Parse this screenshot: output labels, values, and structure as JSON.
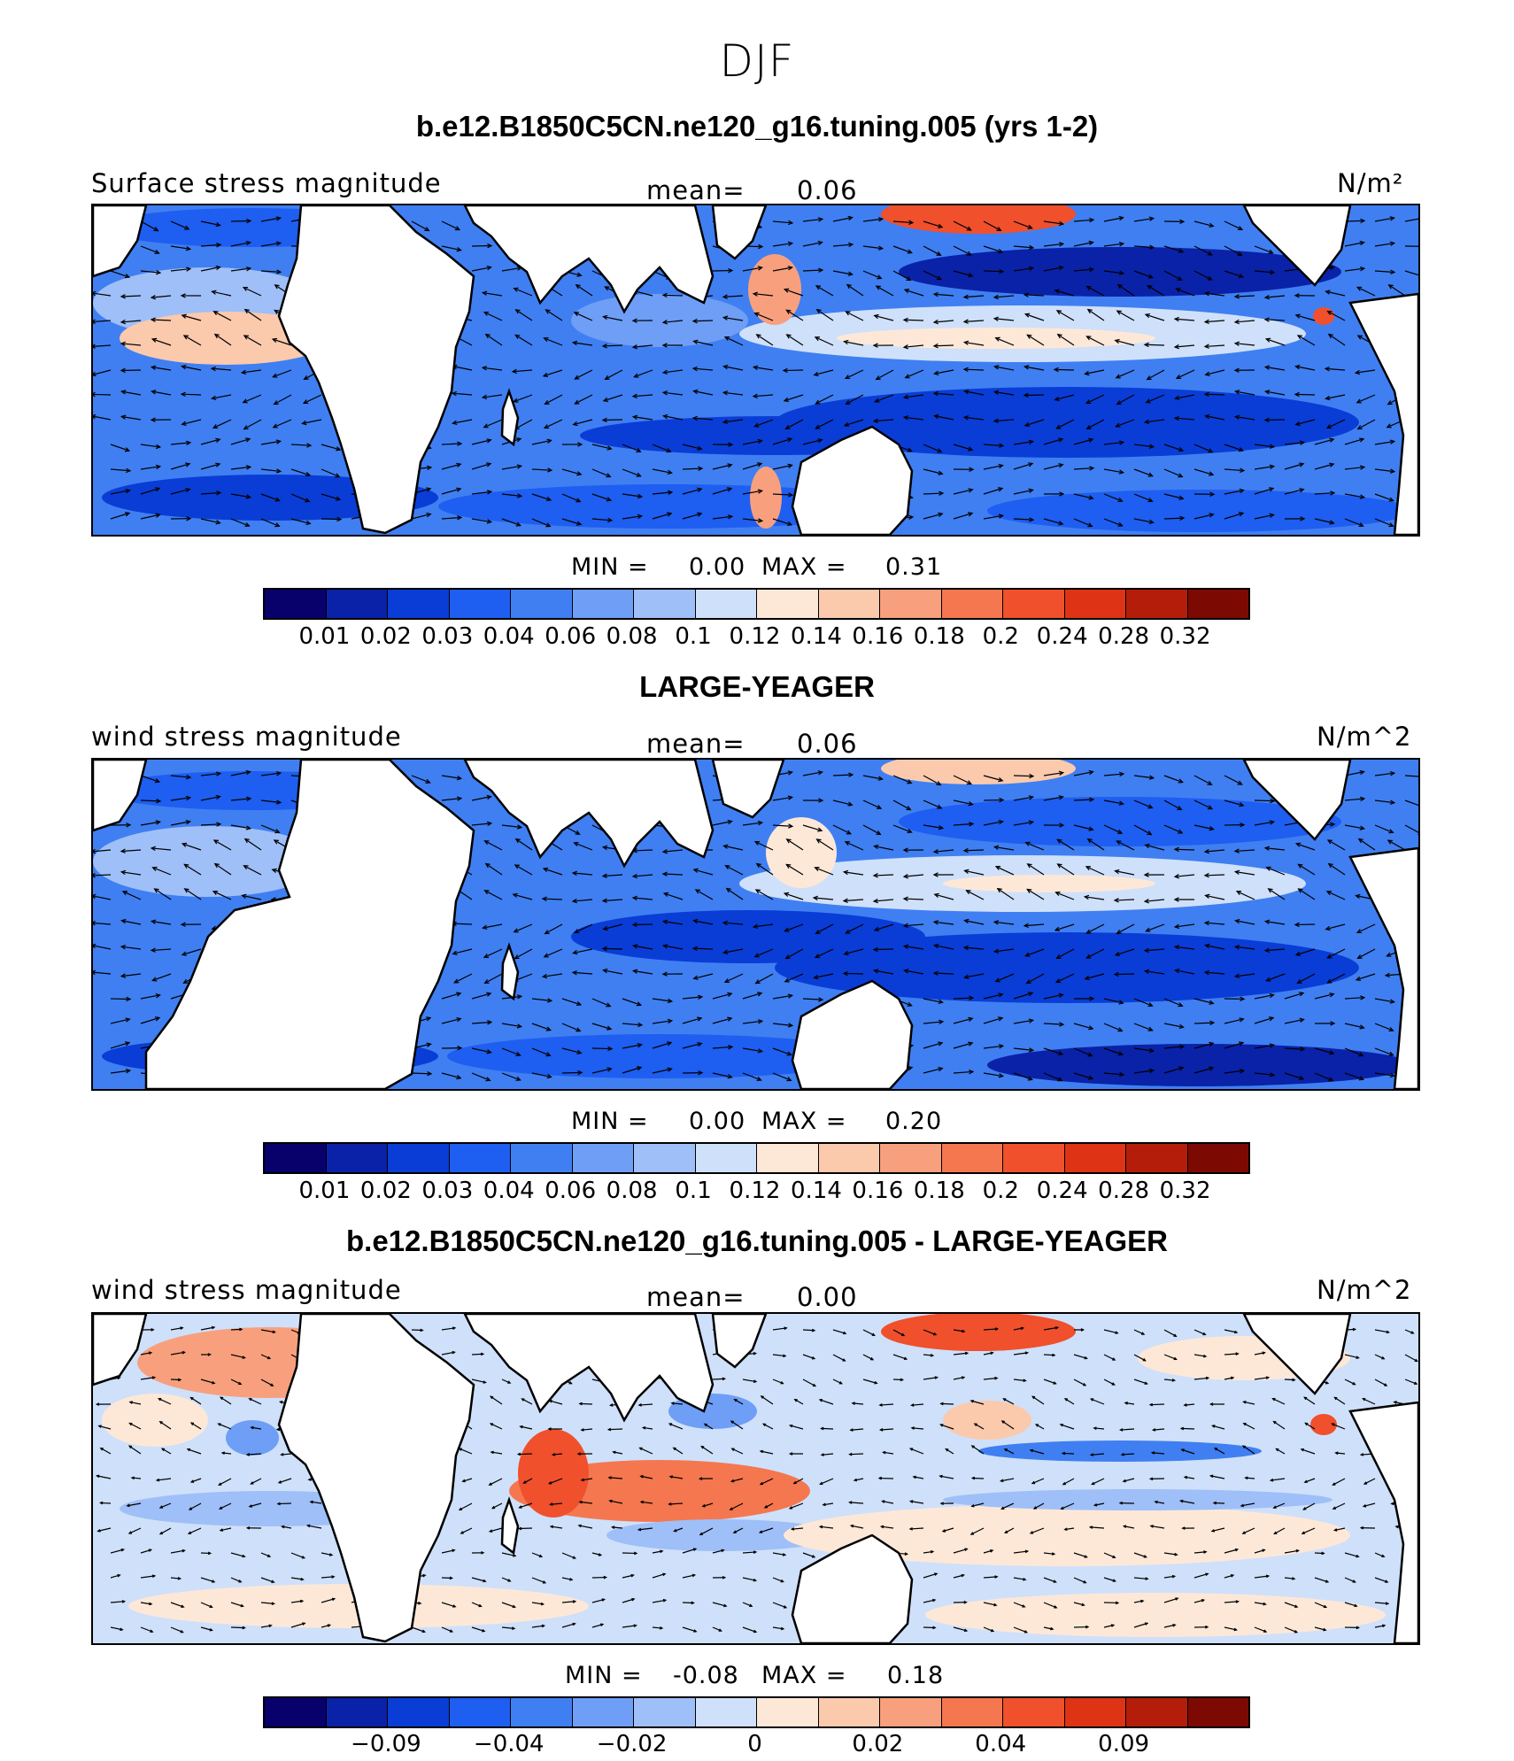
{
  "title": "DJF",
  "palette": [
    "#08006b",
    "#0a22a8",
    "#0a3dd6",
    "#1e5ef0",
    "#3f7ff2",
    "#6e9ef6",
    "#9fbff8",
    "#cfe0fa",
    "#fde8d8",
    "#fbc9ac",
    "#f8a07e",
    "#f5774f",
    "#f0502c",
    "#de3314",
    "#b51d0b",
    "#7d0a02"
  ],
  "colorbar_ticks_abs": [
    "0.01",
    "0.02",
    "0.03",
    "0.04",
    "0.06",
    "0.08",
    "0.1",
    "0.12",
    "0.14",
    "0.16",
    "0.18",
    "0.2",
    "0.24",
    "0.28",
    "0.32"
  ],
  "colorbar_ticks_diff": [
    "-0.09",
    "-0.04",
    "-0.02",
    "0",
    "0.02",
    "0.04",
    "0.09"
  ],
  "panels": [
    {
      "title": "b.e12.B1850C5CN.ne120_g16.tuning.005 (yrs 1-2)",
      "left_label": "Surface stress magnitude",
      "mean_label": "mean=",
      "mean_value": "0.06",
      "units": "N/m²",
      "min_label": "MIN =",
      "min_value": "0.00",
      "max_label": "MAX =",
      "max_value": "0.31"
    },
    {
      "title": "LARGE-YEAGER",
      "left_label": "wind stress magnitude",
      "mean_label": "mean=",
      "mean_value": "0.06",
      "units": "N/m^2",
      "min_label": "MIN =",
      "min_value": "0.00",
      "max_label": "MAX =",
      "max_value": "0.20"
    },
    {
      "title": "b.e12.B1850C5CN.ne120_g16.tuning.005 - LARGE-YEAGER",
      "left_label": "wind stress magnitude",
      "mean_label": "mean=",
      "mean_value": "0.00",
      "units": "N/m^2",
      "min_label": "MIN =",
      "min_value": "-0.08",
      "max_label": "MAX =",
      "max_value": "0.18"
    }
  ]
}
